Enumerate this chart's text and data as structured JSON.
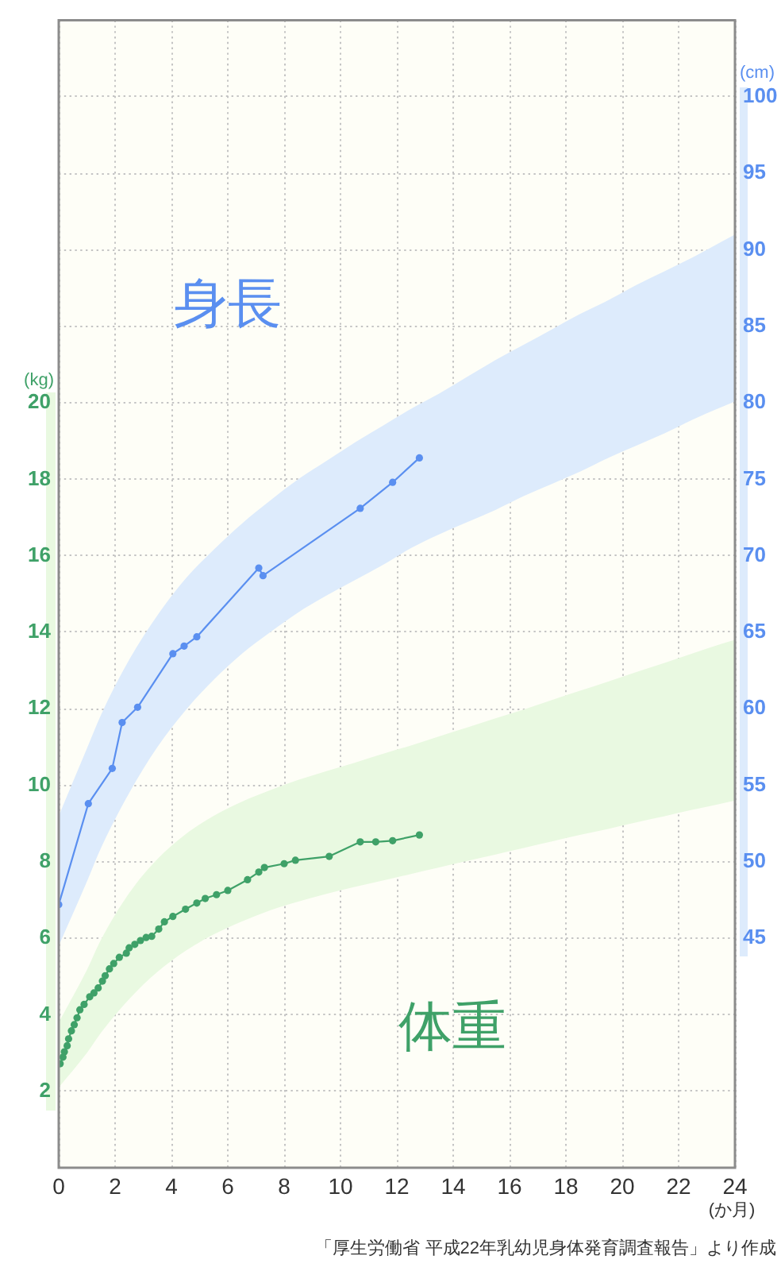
{
  "chart_data": {
    "type": "line",
    "xlabel": "(か月)",
    "ylabel": "(kg)",
    "y2label": "(cm)",
    "xlim": [
      0,
      24
    ],
    "xticks": [
      0,
      2,
      4,
      6,
      8,
      10,
      12,
      14,
      16,
      18,
      20,
      22,
      24
    ],
    "ylim": [
      0,
      30
    ],
    "yticks": [
      2,
      4,
      6,
      8,
      10,
      12,
      14,
      16,
      18,
      20,
      {
        "value": 22,
        "label": null
      },
      {
        "value": 24,
        "label": null
      },
      {
        "value": 26,
        "label": null
      },
      {
        "value": 28,
        "label": null
      }
    ],
    "y2lim": [
      30,
      105
    ],
    "y2ticks": [
      45,
      50,
      55,
      60,
      65,
      70,
      75,
      80,
      85,
      90,
      95,
      100
    ],
    "grid": true,
    "marker": "circle",
    "line_style": "solid",
    "series": [
      {
        "type": "area",
        "axis": "y2",
        "color": "#ddebfc",
        "x": [
          0,
          1,
          1.5,
          2.5,
          3.5,
          4.5,
          5.5,
          6.5,
          7.5,
          8.5,
          9.5,
          10.5,
          11.5,
          12.5,
          13.5,
          14.5,
          15.5,
          16.5,
          17.5,
          18.5,
          19.5,
          20.5,
          21.5,
          22.5,
          23.5,
          24
        ],
        "values": [
          null,
          null,
          null,
          null,
          null,
          null,
          null,
          null,
          null,
          null,
          null,
          null,
          null,
          null,
          null,
          null,
          null,
          null,
          null,
          null,
          null,
          null,
          null,
          null,
          null,
          null
        ],
        "lower": [
          44.5,
          48.7,
          50.9,
          54.5,
          57.5,
          59.9,
          61.9,
          63.6,
          65.0,
          66.3,
          67.4,
          68.4,
          69.4,
          70.5,
          71.4,
          72.2,
          73.0,
          73.9,
          74.7,
          75.5,
          76.4,
          77.2,
          78.0,
          78.9,
          79.7,
          80.1
        ],
        "upper": [
          53.0,
          57.4,
          59.6,
          63.2,
          66.1,
          68.5,
          70.4,
          72.1,
          73.6,
          75.0,
          76.2,
          77.4,
          78.5,
          79.6,
          80.6,
          81.7,
          82.8,
          83.8,
          84.8,
          85.8,
          86.7,
          87.7,
          88.6,
          89.5,
          90.5,
          91.0
        ]
      },
      {
        "type": "area",
        "color": "#e9f9e1",
        "x": [
          0,
          1,
          1.5,
          2.5,
          3.5,
          4.5,
          5.5,
          6.5,
          7.5,
          8.5,
          9.5,
          10.5,
          11.5,
          12.5,
          13.5,
          14.5,
          15.5,
          16.5,
          17.5,
          18.5,
          19.5,
          20.5,
          21.5,
          22.5,
          23.5,
          24
        ],
        "values": [
          null,
          null,
          null,
          null,
          null,
          null,
          null,
          null,
          null,
          null,
          null,
          null,
          null,
          null,
          null,
          null,
          null,
          null,
          null,
          null,
          null,
          null,
          null,
          null,
          null,
          null
        ],
        "lower": [
          2.1,
          3.0,
          3.53,
          4.41,
          5.12,
          5.67,
          6.1,
          6.44,
          6.73,
          6.96,
          7.16,
          7.34,
          7.51,
          7.68,
          7.85,
          8.02,
          8.19,
          8.36,
          8.53,
          8.7,
          8.86,
          9.03,
          9.19,
          9.36,
          9.52,
          9.6
        ],
        "upper": [
          3.8,
          5.17,
          5.96,
          7.18,
          8.07,
          8.72,
          9.2,
          9.57,
          9.87,
          10.14,
          10.37,
          10.59,
          10.82,
          11.04,
          11.28,
          11.51,
          11.75,
          11.98,
          12.23,
          12.47,
          12.71,
          12.96,
          13.2,
          13.45,
          13.69,
          13.8
        ]
      },
      {
        "name": "身長",
        "axis": "y2",
        "color": "#5a8ff0",
        "x": [
          0,
          1.05,
          1.9,
          2.25,
          2.8,
          4.05,
          4.45,
          4.9,
          7.1,
          7.25,
          10.7,
          11.85,
          12.8
        ],
        "values": [
          47.2,
          53.8,
          56.1,
          59.1,
          60.1,
          63.6,
          64.1,
          64.7,
          69.2,
          68.7,
          73.1,
          74.8,
          76.4
        ]
      },
      {
        "name": "体重",
        "color": "#3fa168",
        "x": [
          0.05,
          0.15,
          0.2,
          0.3,
          0.35,
          0.45,
          0.55,
          0.65,
          0.75,
          0.9,
          1.1,
          1.25,
          1.4,
          1.55,
          1.65,
          1.8,
          1.95,
          2.15,
          2.4,
          2.5,
          2.7,
          2.9,
          3.1,
          3.3,
          3.55,
          3.75,
          4.05,
          4.5,
          4.9,
          5.2,
          5.6,
          6.0,
          6.7,
          7.1,
          7.3,
          8.0,
          8.4,
          9.6,
          10.7,
          11.25,
          11.85,
          12.8
        ],
        "values": [
          2.72,
          2.89,
          3.03,
          3.19,
          3.37,
          3.58,
          3.74,
          3.92,
          4.13,
          4.27,
          4.47,
          4.57,
          4.7,
          4.88,
          5.02,
          5.2,
          5.34,
          5.5,
          5.61,
          5.75,
          5.84,
          5.94,
          6.02,
          6.05,
          6.24,
          6.43,
          6.57,
          6.76,
          6.92,
          7.04,
          7.14,
          7.25,
          7.53,
          7.73,
          7.85,
          7.95,
          8.04,
          8.14,
          8.52,
          8.52,
          8.55,
          8.7
        ]
      }
    ],
    "annotations": [
      "「厚生労働省 平成22年乳幼児身体発育調査報告」より作成"
    ]
  }
}
